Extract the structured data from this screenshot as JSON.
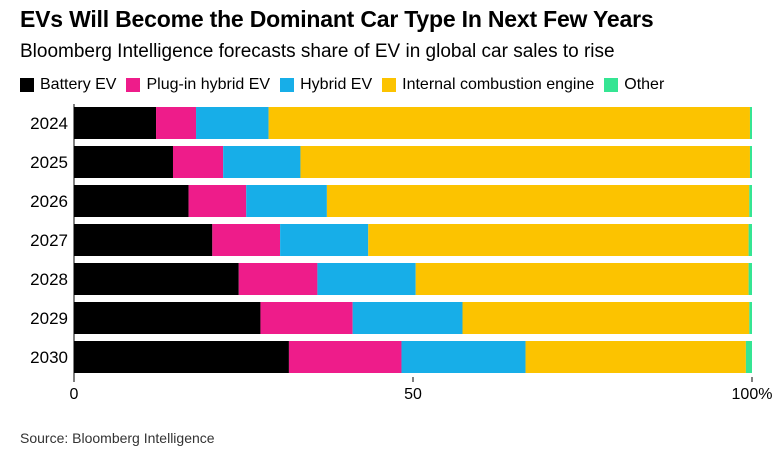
{
  "title": "EVs Will Become the Dominant Car Type In Next Few Years",
  "subtitle": "Bloomberg Intelligence forecasts share of EV in global car sales to rise",
  "source": "Source: Bloomberg Intelligence",
  "legend": [
    {
      "label": "Battery EV",
      "color": "#000000"
    },
    {
      "label": "Plug-in hybrid EV",
      "color": "#ee1c8a"
    },
    {
      "label": "Hybrid EV",
      "color": "#17aee8"
    },
    {
      "label": "Internal combustion engine",
      "color": "#fcc300"
    },
    {
      "label": "Other",
      "color": "#35e593"
    }
  ],
  "chart_data": {
    "type": "bar",
    "orientation": "horizontal",
    "stacked": true,
    "title": "EVs Will Become the Dominant Car Type In Next Few Years",
    "subtitle": "Bloomberg Intelligence forecasts share of EV in global car sales to rise",
    "categories": [
      "2024",
      "2025",
      "2026",
      "2027",
      "2028",
      "2029",
      "2030"
    ],
    "series": [
      {
        "name": "Battery EV",
        "color": "#000000",
        "values": [
          12.1,
          14.6,
          16.9,
          20.4,
          24.3,
          27.5,
          31.7
        ]
      },
      {
        "name": "Plug-in hybrid EV",
        "color": "#ee1c8a",
        "values": [
          5.9,
          7.4,
          8.5,
          10.0,
          11.6,
          13.6,
          16.6
        ]
      },
      {
        "name": "Hybrid EV",
        "color": "#17aee8",
        "values": [
          10.7,
          11.4,
          11.9,
          13.0,
          14.5,
          16.2,
          18.3
        ]
      },
      {
        "name": "Internal combustion engine",
        "color": "#fcc300",
        "values": [
          71.0,
          66.3,
          62.3,
          56.1,
          49.1,
          42.3,
          32.5
        ]
      },
      {
        "name": "Other",
        "color": "#35e593",
        "values": [
          0.3,
          0.3,
          0.4,
          0.5,
          0.5,
          0.4,
          0.9
        ]
      }
    ],
    "x_ticks": [
      "0",
      "50",
      "100%"
    ],
    "xlim": [
      0,
      100
    ],
    "legend_position": "top-left",
    "grid": false
  }
}
